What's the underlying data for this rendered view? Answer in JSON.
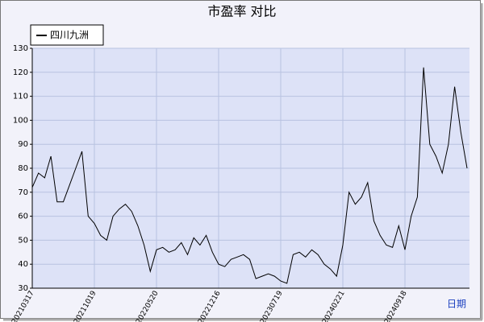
{
  "chart_data": {
    "type": "line",
    "title": "市盈率  对比",
    "xlabel": "日期",
    "categories": [
      "20210317",
      null,
      null,
      null,
      null,
      null,
      null,
      null,
      null,
      null,
      "20211019",
      null,
      null,
      null,
      null,
      null,
      null,
      null,
      null,
      null,
      "20220520",
      null,
      null,
      null,
      null,
      null,
      null,
      null,
      null,
      null,
      "20221216",
      null,
      null,
      null,
      null,
      null,
      null,
      null,
      null,
      null,
      "20230719",
      null,
      null,
      null,
      null,
      null,
      null,
      null,
      null,
      null,
      "20240221",
      null,
      null,
      null,
      null,
      null,
      null,
      null,
      null,
      null,
      "20240918",
      null,
      null,
      null,
      null,
      null,
      null,
      null,
      null,
      null,
      null
    ],
    "series": [
      {
        "name": "四川九洲",
        "color": "#000000",
        "values": [
          72,
          78,
          76,
          85,
          66,
          66,
          73,
          80,
          87,
          60,
          57,
          52,
          50,
          60,
          63,
          65,
          62,
          56,
          48,
          37,
          46,
          47,
          45,
          46,
          49,
          44,
          51,
          48,
          52,
          45,
          40,
          39,
          42,
          43,
          44,
          42,
          34,
          35,
          36,
          35,
          33,
          32,
          44,
          45,
          43,
          46,
          44,
          40,
          38,
          35,
          48,
          70,
          65,
          68,
          74,
          58,
          52,
          48,
          47,
          56,
          46,
          60,
          68,
          122,
          90,
          85,
          78,
          90,
          114,
          95,
          80
        ]
      }
    ],
    "ylim": [
      30,
      130
    ],
    "yticks": [
      30,
      40,
      50,
      60,
      70,
      80,
      90,
      100,
      110,
      120,
      130
    ],
    "grid": true,
    "legend": "top-left"
  }
}
